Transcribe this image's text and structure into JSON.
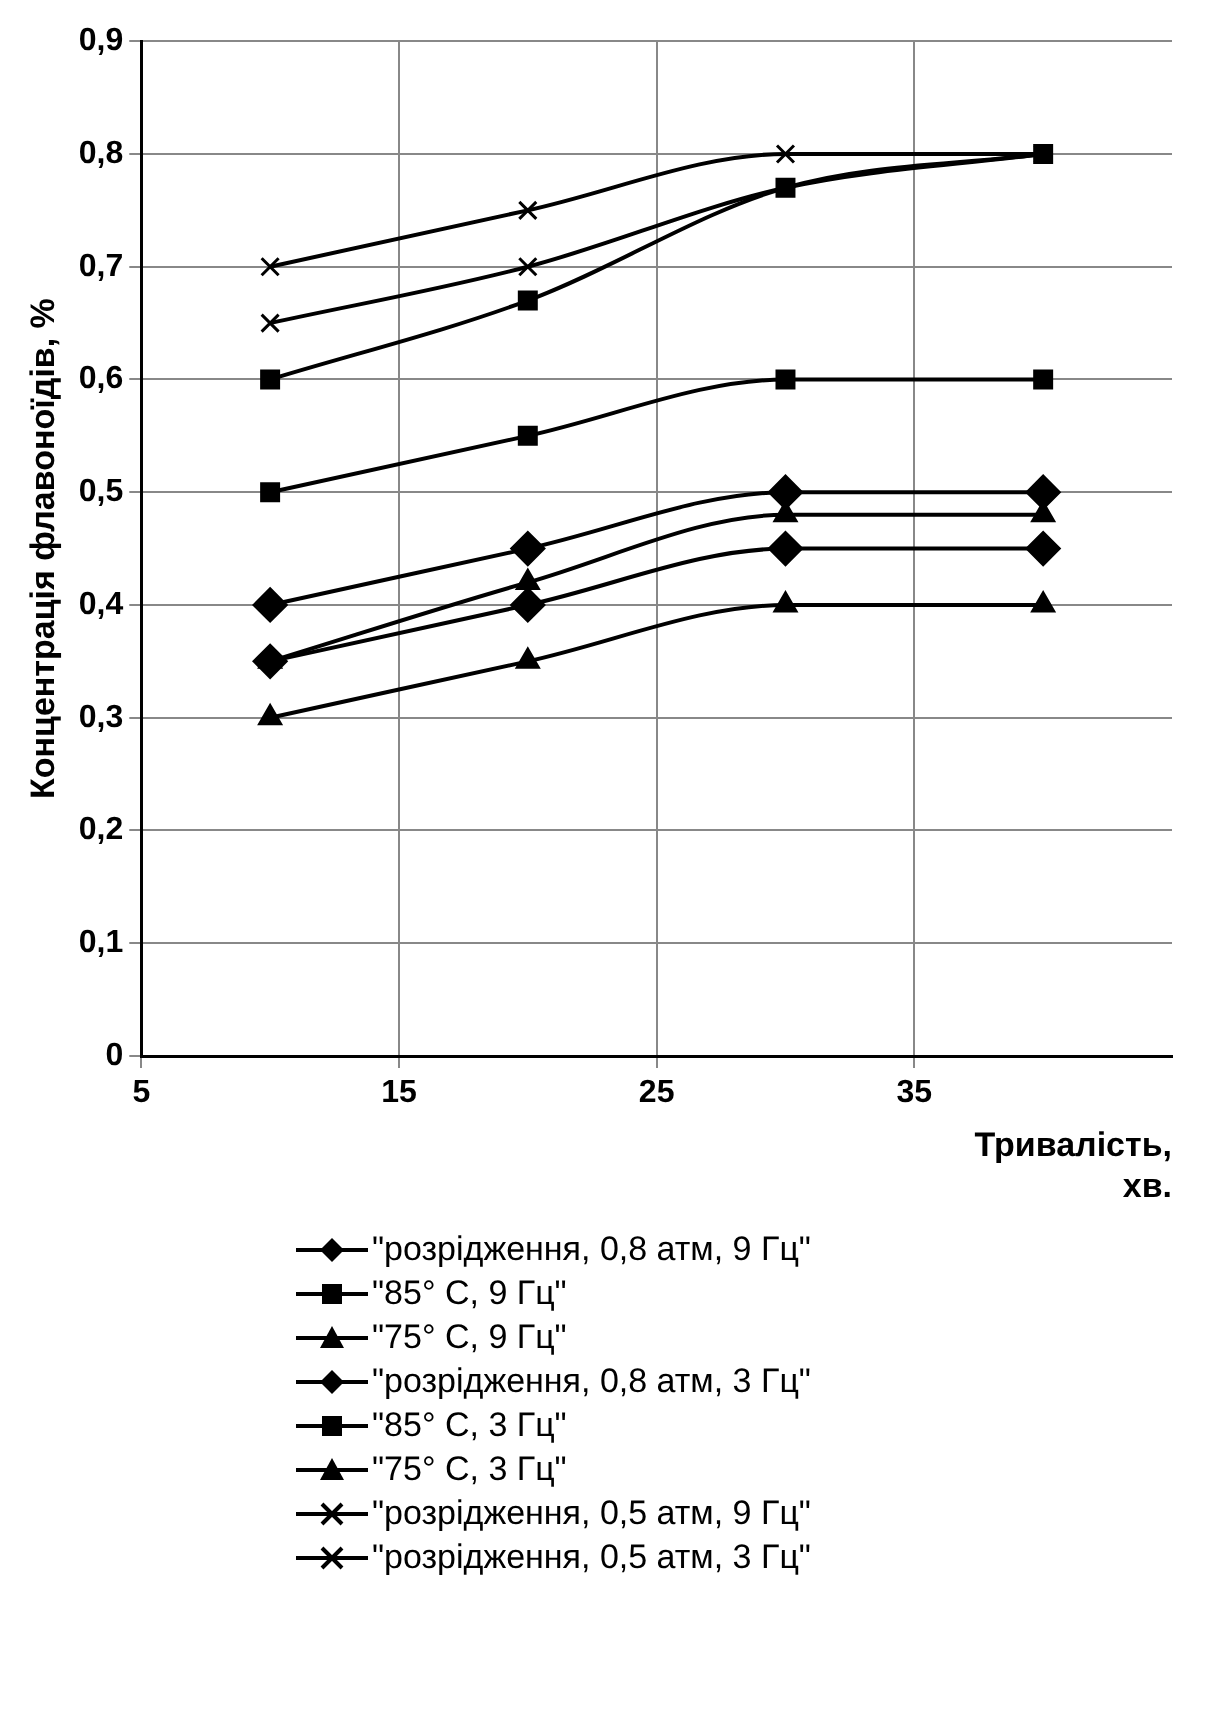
{
  "chart_data": {
    "type": "line",
    "xlabel": "Тривалість, хв.",
    "ylabel": "Концентрація флавоноїдів, %",
    "xlim": [
      5,
      45
    ],
    "xticks": [
      5,
      15,
      25,
      35
    ],
    "ylim": [
      0,
      0.9
    ],
    "yticks": [
      0,
      {
        "value": 0.1,
        "label": "0,1"
      },
      {
        "value": 0.2,
        "label": "0,2"
      },
      {
        "value": 0.3,
        "label": "0,3"
      },
      {
        "value": 0.4,
        "label": "0,4"
      },
      {
        "value": 0.5,
        "label": "0,5"
      },
      {
        "value": 0.6,
        "label": "0,6"
      },
      {
        "value": 0.7,
        "label": "0,7"
      },
      {
        "value": 0.8,
        "label": "0,8"
      },
      {
        "value": 0.9,
        "label": "0,9"
      }
    ],
    "grid": true,
    "legend": "bottom",
    "x": [
      10,
      20,
      30,
      40
    ],
    "series": [
      {
        "name": "\"розрідження, 0,8 атм, 9 Гц\"",
        "color": "#000000",
        "marker": "diamond",
        "values": [
          0.4,
          0.45,
          0.5,
          0.5
        ]
      },
      {
        "name": "\"85° С, 9 Гц\"",
        "color": "#000000",
        "marker": "square",
        "values": [
          0.6,
          0.67,
          0.77,
          0.8
        ]
      },
      {
        "name": "\"75° С, 9 Гц\"",
        "color": "#000000",
        "marker": "triangle",
        "values": [
          0.35,
          0.42,
          0.48,
          0.48
        ]
      },
      {
        "name": "\"розрідження, 0,8 атм, 3 Гц\"",
        "color": "#000000",
        "marker": "diamond",
        "values": [
          0.35,
          0.4,
          0.45,
          0.45
        ]
      },
      {
        "name": "\"85° С, 3 Гц\"",
        "color": "#000000",
        "marker": "square",
        "values": [
          0.5,
          0.55,
          0.6,
          0.6
        ]
      },
      {
        "name": "\"75° С, 3 Гц\"",
        "color": "#000000",
        "marker": "triangle",
        "values": [
          0.3,
          0.35,
          0.4,
          0.4
        ]
      },
      {
        "name": "\"розрідження, 0,5 атм, 9 Гц\"",
        "color": "#000000",
        "marker": "cross",
        "values": [
          0.7,
          0.75,
          0.8,
          0.8
        ]
      },
      {
        "name": "\"розрідження, 0,5 атм, 3 Гц\"",
        "color": "#000000",
        "marker": "cross",
        "values": [
          0.65,
          0.7,
          0.77,
          0.8
        ]
      }
    ]
  }
}
